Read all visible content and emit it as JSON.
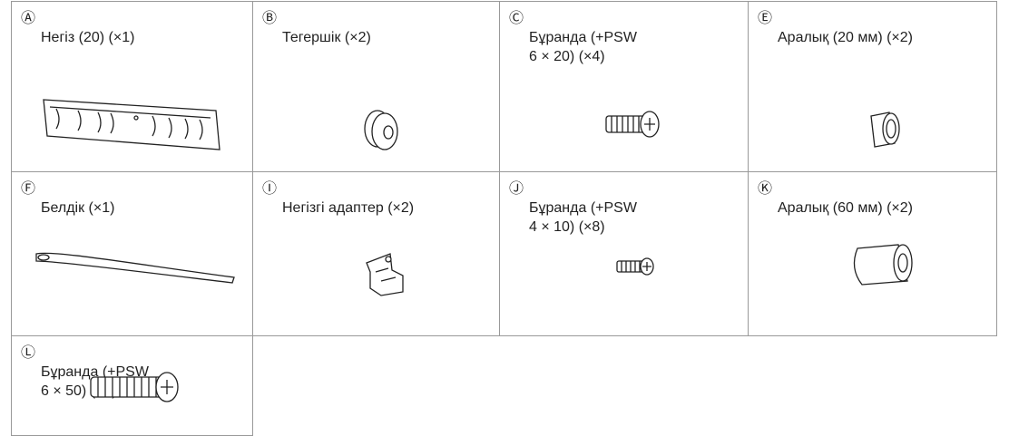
{
  "items": [
    {
      "marker": "Ⓐ",
      "lines": [
        "Негіз (20) (×1)"
      ]
    },
    {
      "marker": "Ⓑ",
      "lines": [
        "Тегершік (×2)"
      ]
    },
    {
      "marker": "Ⓒ",
      "lines": [
        "Бұранда (+PSW",
        "6 × 20) (×4)"
      ]
    },
    {
      "marker": "Ⓔ",
      "lines": [
        "Аралық (20 мм) (×2)"
      ]
    },
    {
      "marker": "Ⓕ",
      "lines": [
        "Белдік (×1)"
      ]
    },
    {
      "marker": "Ⓘ",
      "lines": [
        "Негізгі адаптер (×2)"
      ]
    },
    {
      "marker": "Ⓙ",
      "lines": [
        "Бұранда (+PSW",
        "4 × 10) (×8)"
      ]
    },
    {
      "marker": "Ⓚ",
      "lines": [
        "Аралық (60 мм) (×2)"
      ]
    },
    {
      "marker": "Ⓛ",
      "lines": [
        "Бұранда (+PSW",
        "6 × 50) (×2)"
      ]
    }
  ]
}
